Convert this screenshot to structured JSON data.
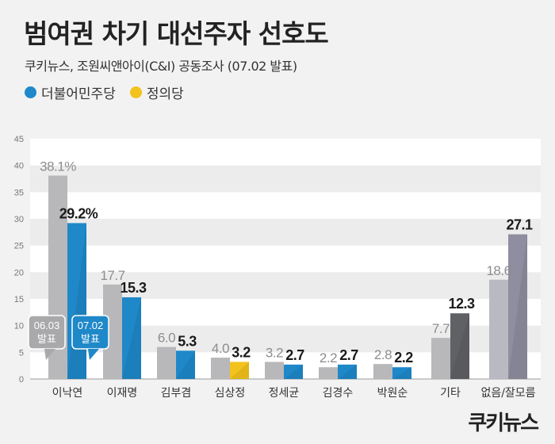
{
  "title": "범여권 차기 대선주자 선호도",
  "subtitle": "쿠키뉴스, 조원씨앤아이(C&I) 공동조사 (07.02 발표)",
  "legend": [
    {
      "label": "더불어민주당",
      "color": "#1f88c9"
    },
    {
      "label": "정의당",
      "color": "#f3c21b"
    }
  ],
  "logo_text": "쿠키뉴스",
  "colors": {
    "previous": "#b8b8ba",
    "democratic": "#1f88c9",
    "justice": "#f3c21b",
    "other_current": "#5f6165",
    "none_current": "#8e8ea0",
    "none_previous": "#b9b9c2"
  },
  "chart_data": {
    "type": "bar",
    "ylim": [
      0,
      45
    ],
    "yticks": [
      0,
      5,
      10,
      15,
      20,
      25,
      30,
      35,
      40,
      45
    ],
    "grid": "horizontal bands",
    "categories": [
      "이낙연",
      "이재명",
      "김부겸",
      "심상정",
      "정세균",
      "김경수",
      "박원순",
      "기타",
      "없음/잘모름"
    ],
    "series": [
      {
        "name": "06.03 발표",
        "values": [
          38.1,
          17.7,
          6.0,
          4.0,
          3.2,
          2.2,
          2.8,
          7.7,
          18.6
        ]
      },
      {
        "name": "07.02 발표",
        "values": [
          29.2,
          15.3,
          5.3,
          3.2,
          2.7,
          2.7,
          2.2,
          12.3,
          27.1
        ]
      }
    ],
    "labels_prev": [
      "38.1%",
      "17.7",
      "6.0",
      "4.0",
      "3.2",
      "2.2",
      "2.8",
      "7.7",
      "18.6"
    ],
    "labels_curr": [
      "29.2%",
      "15.3",
      "5.3",
      "3.2",
      "2.7",
      "2.7",
      "2.2",
      "12.3",
      "27.1"
    ],
    "party": [
      "democratic",
      "democratic",
      "democratic",
      "justice",
      "democratic",
      "democratic",
      "democratic",
      "other",
      "none"
    ],
    "callouts": [
      "06.03 발표",
      "07.02 발표"
    ]
  }
}
